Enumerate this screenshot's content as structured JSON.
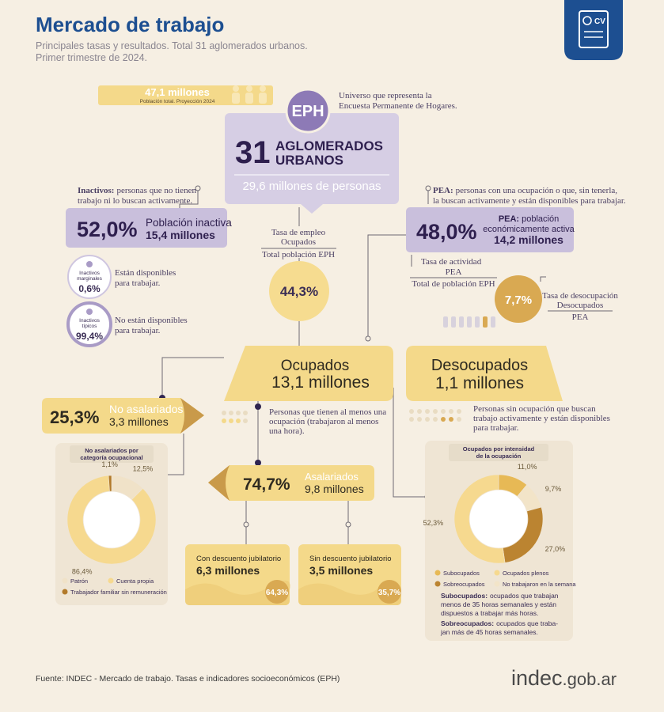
{
  "header": {
    "title": "Mercado de trabajo",
    "subtitle": [
      "Principales tasas y resultados. Total 31 aglomerados urbanos.",
      "Primer trimestre de 2024."
    ]
  },
  "population": {
    "amount": "47,1 millones",
    "caption": "Población total. Proyección 2024"
  },
  "eph": {
    "badge": "EPH",
    "note": [
      "Universo que representa la",
      "Encuesta Permanente de Hogares."
    ],
    "number": "31",
    "label": [
      "AGLOMERADOS",
      "URBANOS"
    ],
    "people": "29,6 millones de personas"
  },
  "inactive": {
    "term": "Inactivos:",
    "definition": [
      "personas que no tienen",
      "trabajo ni lo buscan activamente."
    ],
    "rate": "52,0%",
    "label": "Población inactiva",
    "amount": "15,4 millones",
    "groups": [
      {
        "name": [
          "Inactivos",
          "marginales"
        ],
        "share": "0,6%",
        "note": [
          "Están disponibles",
          "para trabajar."
        ]
      },
      {
        "name": [
          "Inactivos",
          "típicos"
        ],
        "share": "99,4%",
        "note": [
          "No están disponibles",
          "para trabajar."
        ]
      }
    ]
  },
  "employment_rate": {
    "title": "Tasa de empleo",
    "numerator": "Ocupados",
    "denominator": "Total población EPH",
    "value": "44,3%"
  },
  "pea": {
    "term": "PEA:",
    "definition": [
      "personas con una ocupación o que, sin tenerla,",
      "la buscan activamente y están disponibles para trabajar."
    ],
    "rate": "48,0%",
    "label_term": "PEA:",
    "label": [
      "población",
      "económicamente activa"
    ],
    "amount": "14,2 millones"
  },
  "activity_rate": {
    "title": "Tasa de actividad",
    "numerator": "PEA",
    "denominator": "Total de población EPH"
  },
  "unemployment_rate": {
    "value": "7,7%",
    "title": "Tasa de desocupación",
    "numerator": "Desocupados",
    "denominator": "PEA"
  },
  "employed": {
    "label": "Ocupados",
    "amount": "13,1 millones",
    "note": [
      "Personas que tienen al menos una",
      "ocupación (trabajaron al menos",
      "una hora)."
    ]
  },
  "unemployed": {
    "label": "Desocupados",
    "amount": "1,1 millones",
    "note": [
      "Personas sin ocupación que buscan",
      "trabajo activamente y están disponibles",
      "para trabajar."
    ]
  },
  "non_salaried": {
    "share": "25,3%",
    "label": "No asalariados",
    "amount": "3,3 millones",
    "chart": {
      "title": [
        "No asalariados por",
        "categoría ocupacional"
      ],
      "segments": [
        {
          "name": "Patrón",
          "value": 12.5,
          "label": "12,5%",
          "color": "#f0e2c8"
        },
        {
          "name": "Cuenta propia",
          "value": 86.4,
          "label": "86,4%",
          "color": "#f6d98f"
        },
        {
          "name": "Trabajador familiar sin remuneración",
          "value": 1.1,
          "label": "1,1%",
          "color": "#b27a2a"
        }
      ]
    }
  },
  "salaried": {
    "share": "74,7%",
    "label": "Asalariados",
    "amount": "9,8 millones",
    "breakdown": [
      {
        "label": "Con descuento jubilatorio",
        "amount": "6,3 millones",
        "share": "64,3%"
      },
      {
        "label": "Sin descuento jubilatorio",
        "amount": "3,5 millones",
        "share": "35,7%"
      }
    ]
  },
  "intensity": {
    "chart": {
      "title": [
        "Ocupados por intensidad",
        "de la ocupación"
      ],
      "segments": [
        {
          "name": "Subocupados",
          "value": 11.0,
          "label": "11,0%",
          "color": "#e7b955"
        },
        {
          "name": "No trabajaron en la semana",
          "value": 9.7,
          "label": "9,7%",
          "color": "#f2e4c8"
        },
        {
          "name": "Sobreocupados",
          "value": 27.0,
          "label": "27,0%",
          "color": "#bb8431"
        },
        {
          "name": "Ocupados plenos",
          "value": 52.3,
          "label": "52,3%",
          "color": "#f6d98f"
        }
      ]
    },
    "definitions": [
      {
        "term": "Subocupados:",
        "text": [
          "ocupados que trabajan",
          "menos de 35 horas semanales y están",
          "dispuestos a trabajar más horas."
        ]
      },
      {
        "term": "Sobreocupados:",
        "text": [
          "ocupados que traba-",
          "jan más de 45 horas semanales."
        ]
      }
    ]
  },
  "footer": {
    "source": "Fuente: INDEC - Mercado de trabajo. Tasas e indicadores socioeconómicos (EPH)",
    "logo": "indec",
    "domain": ".gob.ar"
  }
}
